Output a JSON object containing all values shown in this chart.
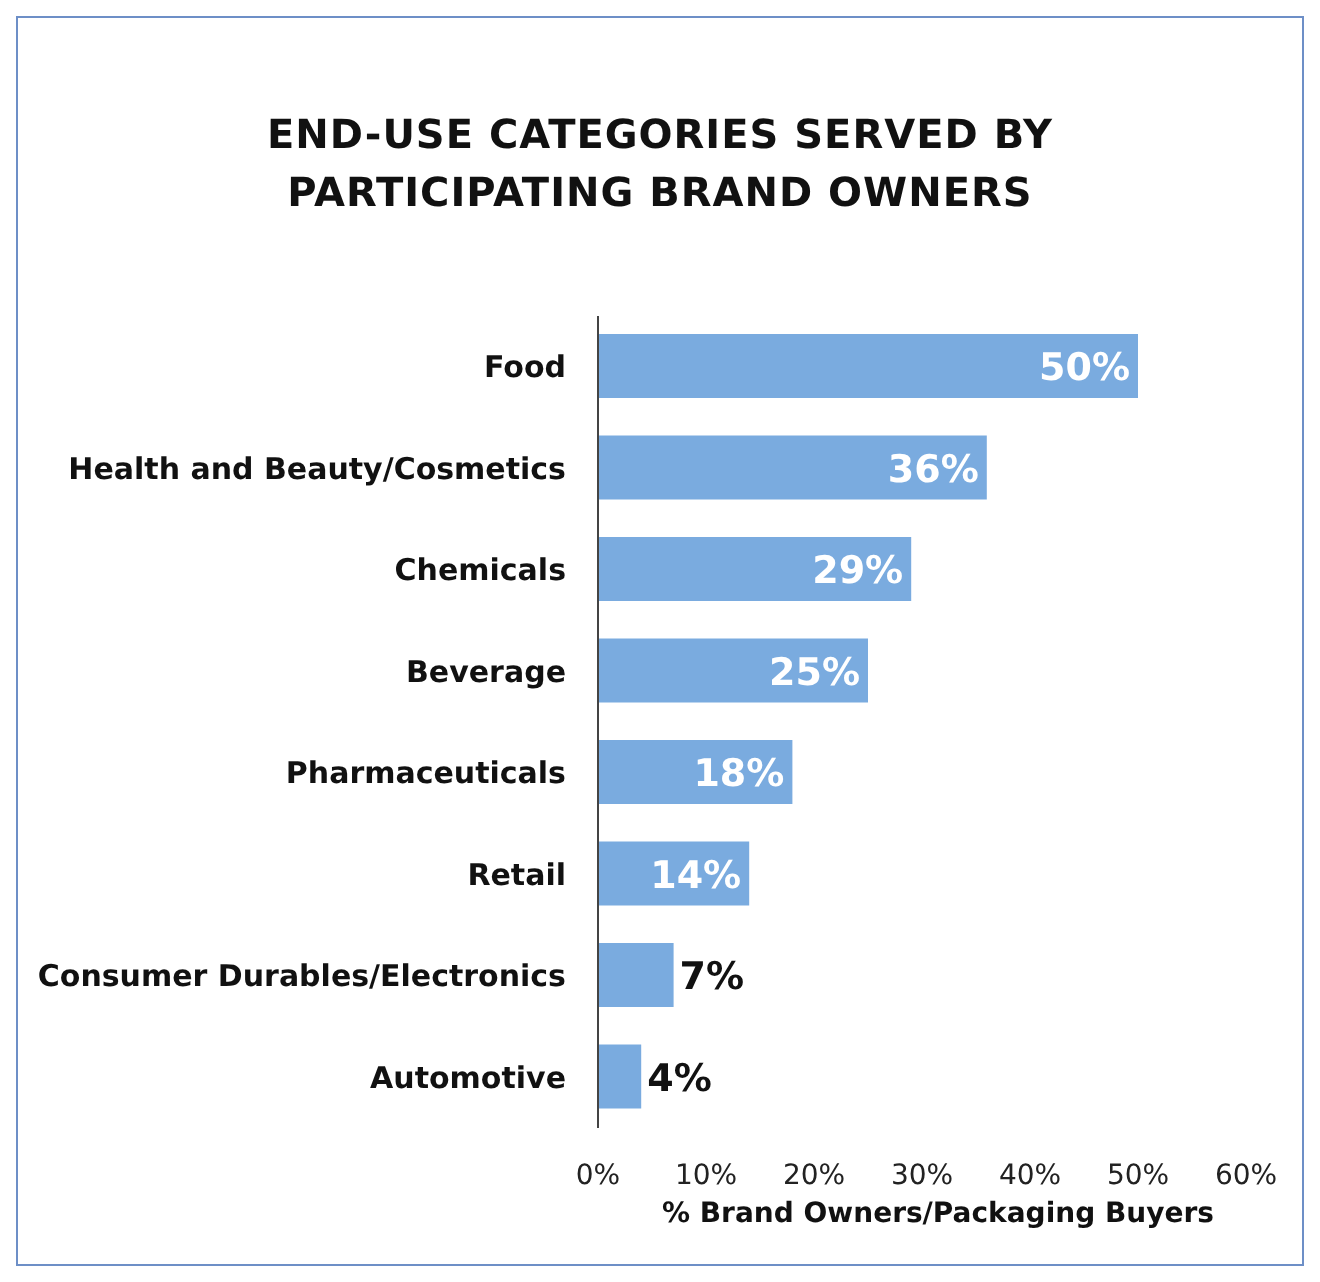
{
  "chart_data": {
    "type": "bar",
    "orientation": "horizontal",
    "title": "END-USE CATEGORIES SERVED BY PARTICIPATING BRAND OWNERS",
    "xlabel": "% Brand Owners/Packaging Buyers",
    "categories": [
      "Food",
      "Health and Beauty/Cosmetics",
      "Chemicals",
      "Beverage",
      "Pharmaceuticals",
      "Retail",
      "Consumer Durables/Electronics",
      "Automotive"
    ],
    "values": [
      50,
      36,
      29,
      25,
      18,
      14,
      7,
      4
    ],
    "value_labels": [
      "50%",
      "36%",
      "29%",
      "25%",
      "18%",
      "14%",
      "7%",
      "4%"
    ],
    "color": "#7aabdf",
    "xlim": [
      0,
      60
    ],
    "xticks": [
      {
        "value": 0,
        "label": "0%"
      },
      {
        "value": 10,
        "label": "10%"
      },
      {
        "value": 20,
        "label": "20%"
      },
      {
        "value": 30,
        "label": "30%"
      },
      {
        "value": 40,
        "label": "40%"
      },
      {
        "value": 50,
        "label": "50%"
      },
      {
        "value": 60,
        "label": "60%"
      }
    ],
    "grid": false,
    "legend": false
  }
}
